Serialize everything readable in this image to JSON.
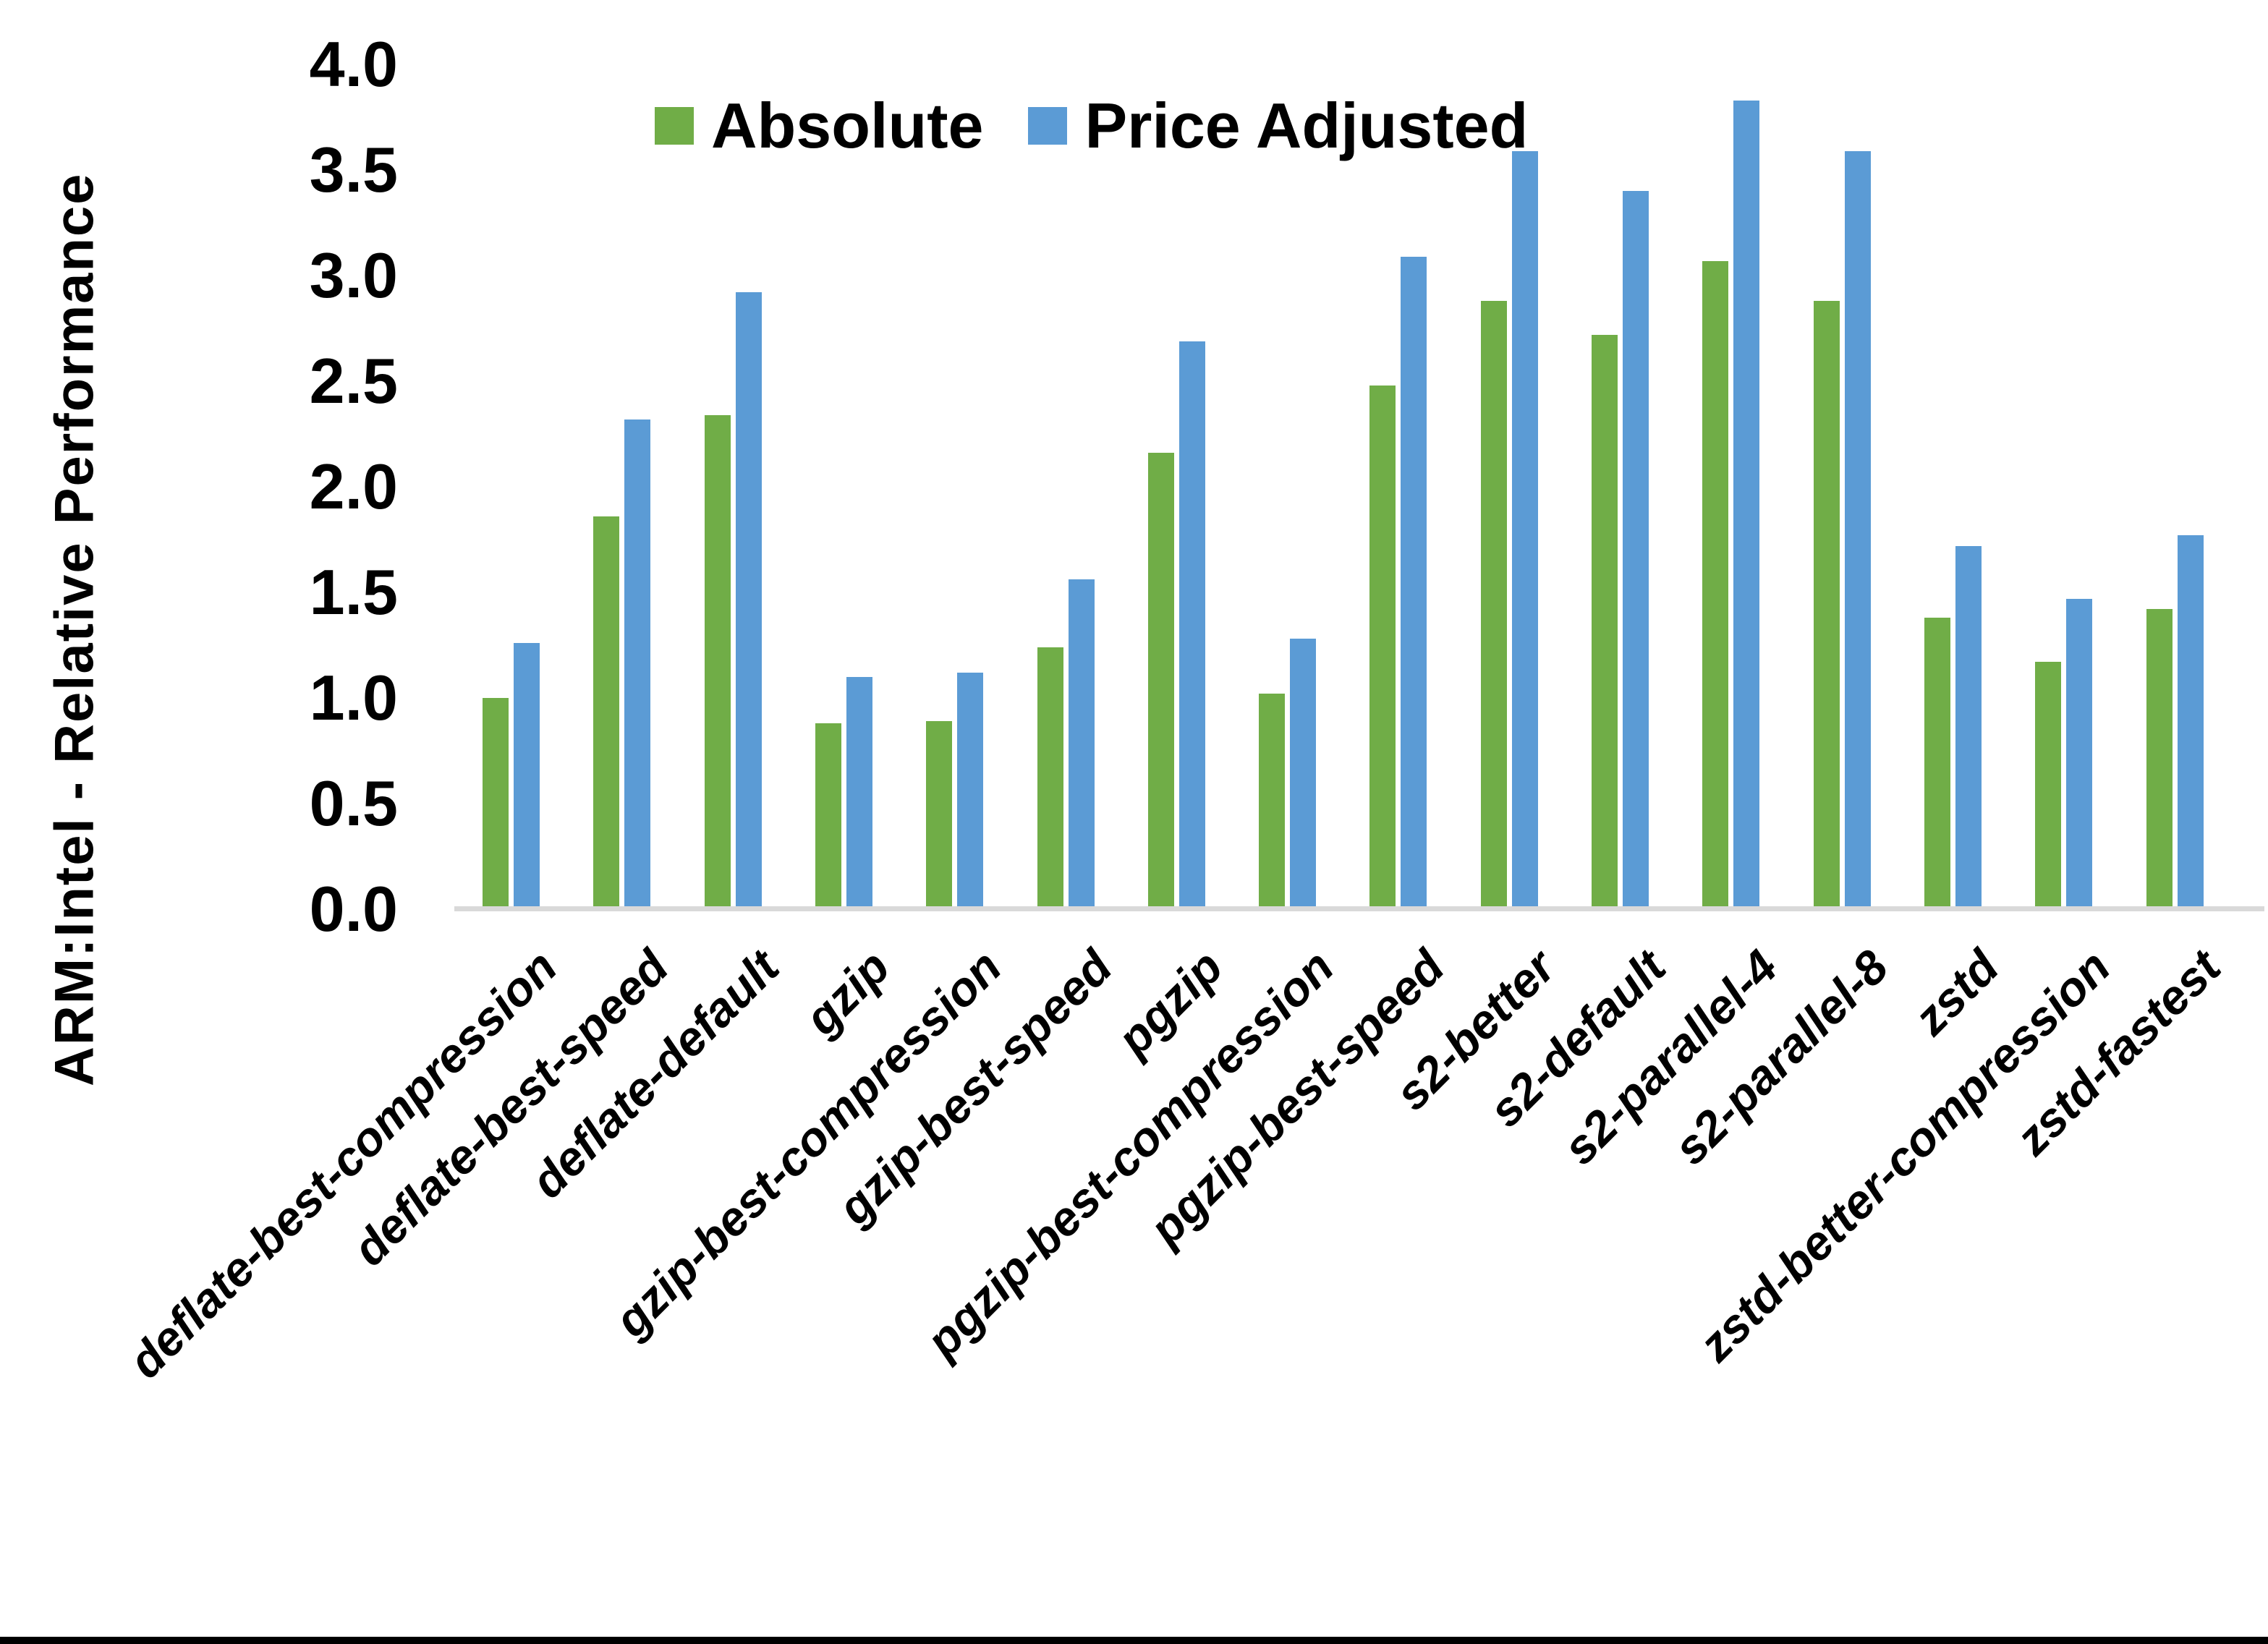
{
  "chart_data": {
    "type": "bar",
    "title": "",
    "ylabel": "ARM:Intel - Relative Performance",
    "xlabel": "",
    "ylim": [
      0.0,
      4.0
    ],
    "ytick_step": 0.5,
    "ytick_labels": [
      "0.0",
      "0.5",
      "1.0",
      "1.5",
      "2.0",
      "2.5",
      "3.0",
      "3.5",
      "4.0"
    ],
    "grid": "off",
    "legend_position": "top-center",
    "categories": [
      "deflate-best-compression",
      "deflate-best-speed",
      "deflate-default",
      "gzip",
      "gzip-best-compression",
      "gzip-best-speed",
      "pgzip",
      "pgzip-best-compression",
      "pgzip-best-speed",
      "s2-better",
      "s2-default",
      "s2-parallel-4",
      "s2-parallel-8",
      "zstd",
      "zstd-better-compression",
      "zstd-fastest"
    ],
    "series": [
      {
        "name": "Absolute",
        "color": "#70AD47",
        "values": [
          1.0,
          1.86,
          2.34,
          0.88,
          0.89,
          1.24,
          2.16,
          1.02,
          2.48,
          2.88,
          2.72,
          3.07,
          2.88,
          1.38,
          1.17,
          1.42
        ]
      },
      {
        "name": "Price Adjusted",
        "color": "#5B9BD5",
        "values": [
          1.26,
          2.32,
          2.92,
          1.1,
          1.12,
          1.56,
          2.69,
          1.28,
          3.09,
          3.59,
          3.4,
          3.83,
          3.59,
          1.72,
          1.47,
          1.77
        ]
      }
    ]
  },
  "colors": {
    "background": "#FFFFFF",
    "text": "#000000",
    "axis_line": "#D9D9D9",
    "bottom_border": "#000000"
  }
}
